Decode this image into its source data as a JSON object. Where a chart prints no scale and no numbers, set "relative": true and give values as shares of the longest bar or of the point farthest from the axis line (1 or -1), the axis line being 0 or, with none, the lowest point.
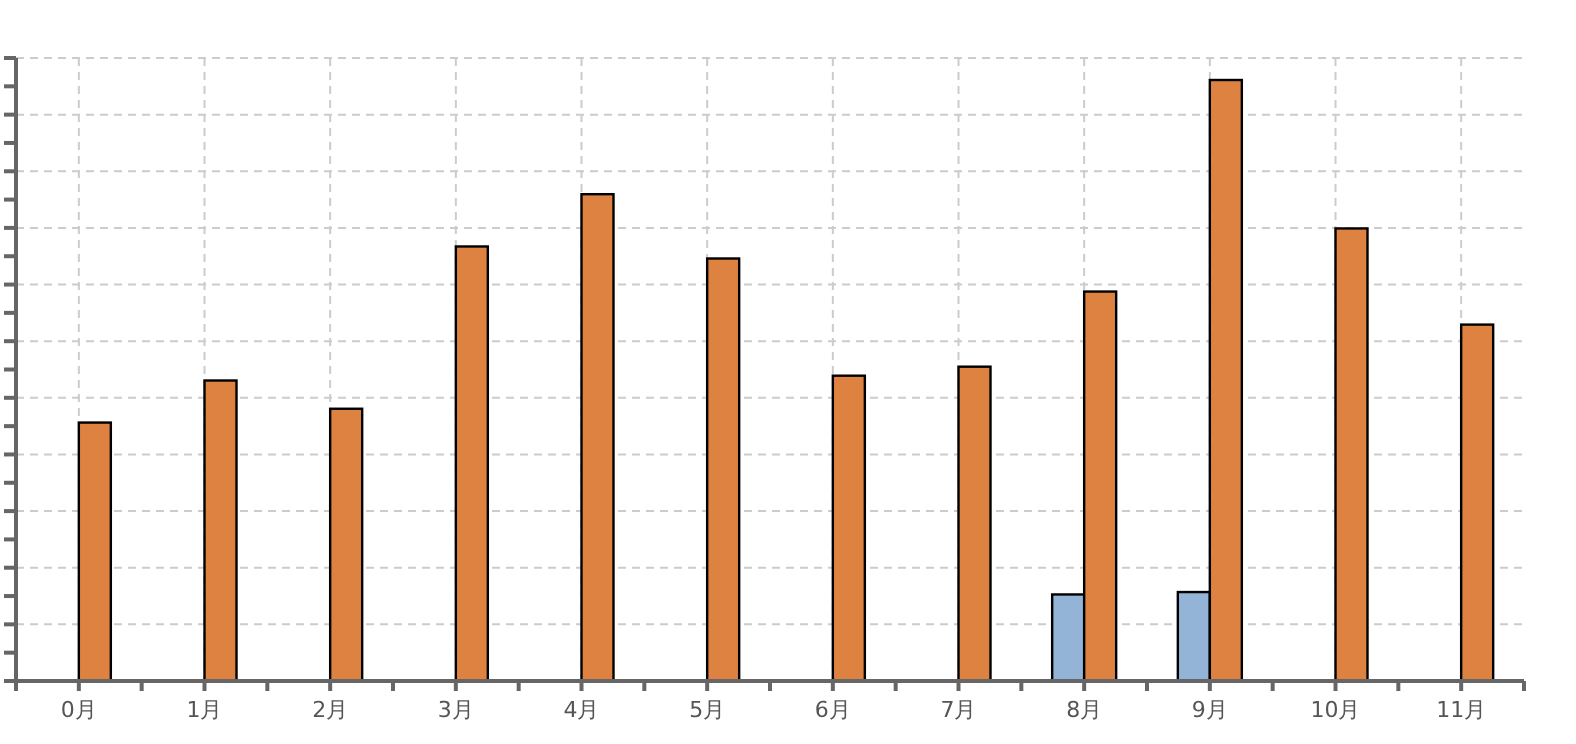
{
  "chart_data": {
    "type": "bar",
    "relative": true,
    "grid": true,
    "categories": [
      "0月",
      "1月",
      "2月",
      "3月",
      "4月",
      "5月",
      "6月",
      "7月",
      "8月",
      "9月",
      "10月",
      "11月"
    ],
    "series": [
      {
        "color": "#93b4d6",
        "values": [
          0,
          0,
          0,
          0,
          0,
          0,
          0,
          0,
          0.144,
          0.148,
          0,
          0
        ]
      },
      {
        "color": "#de8241",
        "values": [
          0.43,
          0.5,
          0.453,
          0.723,
          0.81,
          0.703,
          0.508,
          0.523,
          0.648,
          1,
          0.753,
          0.593
        ]
      }
    ]
  }
}
